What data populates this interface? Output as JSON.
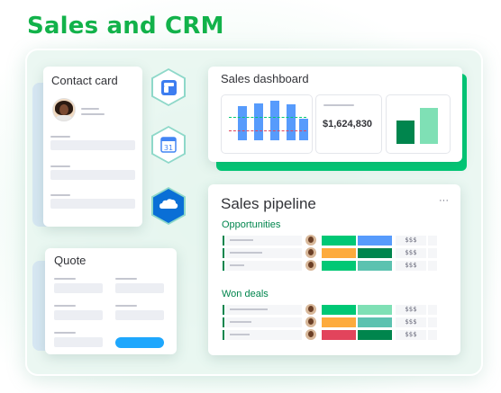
{
  "header": {
    "title": "Sales and CRM"
  },
  "contact_card": {
    "title": "Contact card"
  },
  "quote": {
    "title": "Quote"
  },
  "integrations": [
    {
      "icon": "pipedrive-icon"
    },
    {
      "icon": "google-calendar-icon",
      "label": "31"
    },
    {
      "icon": "salesforce-icon"
    }
  ],
  "dashboard": {
    "title": "Sales dashboard",
    "total": "$1,624,830"
  },
  "pipeline": {
    "title": "Sales pipeline",
    "more": "···",
    "sections": [
      {
        "label": "Opportunities",
        "rows": [
          {
            "status": "#00c875",
            "priority": "#579bfc",
            "amount": "$$$"
          },
          {
            "status": "#fdab3d",
            "priority": "#00854d",
            "amount": "$$$"
          },
          {
            "status": "#00c875",
            "priority": "#5cc2b0",
            "amount": "$$$"
          }
        ]
      },
      {
        "label": "Won deals",
        "rows": [
          {
            "status": "#00c875",
            "priority": "#7fe0b5",
            "amount": "$$$"
          },
          {
            "status": "#fdab3d",
            "priority": "#5cc2b0",
            "amount": "$$$"
          },
          {
            "status": "#e2445c",
            "priority": "#00854d",
            "amount": "$$$"
          }
        ]
      }
    ]
  },
  "colors": {
    "brand_green": "#12b24a",
    "accent_blue": "#579bfc",
    "dark_green": "#00854d",
    "light_green": "#7fe0b5"
  }
}
